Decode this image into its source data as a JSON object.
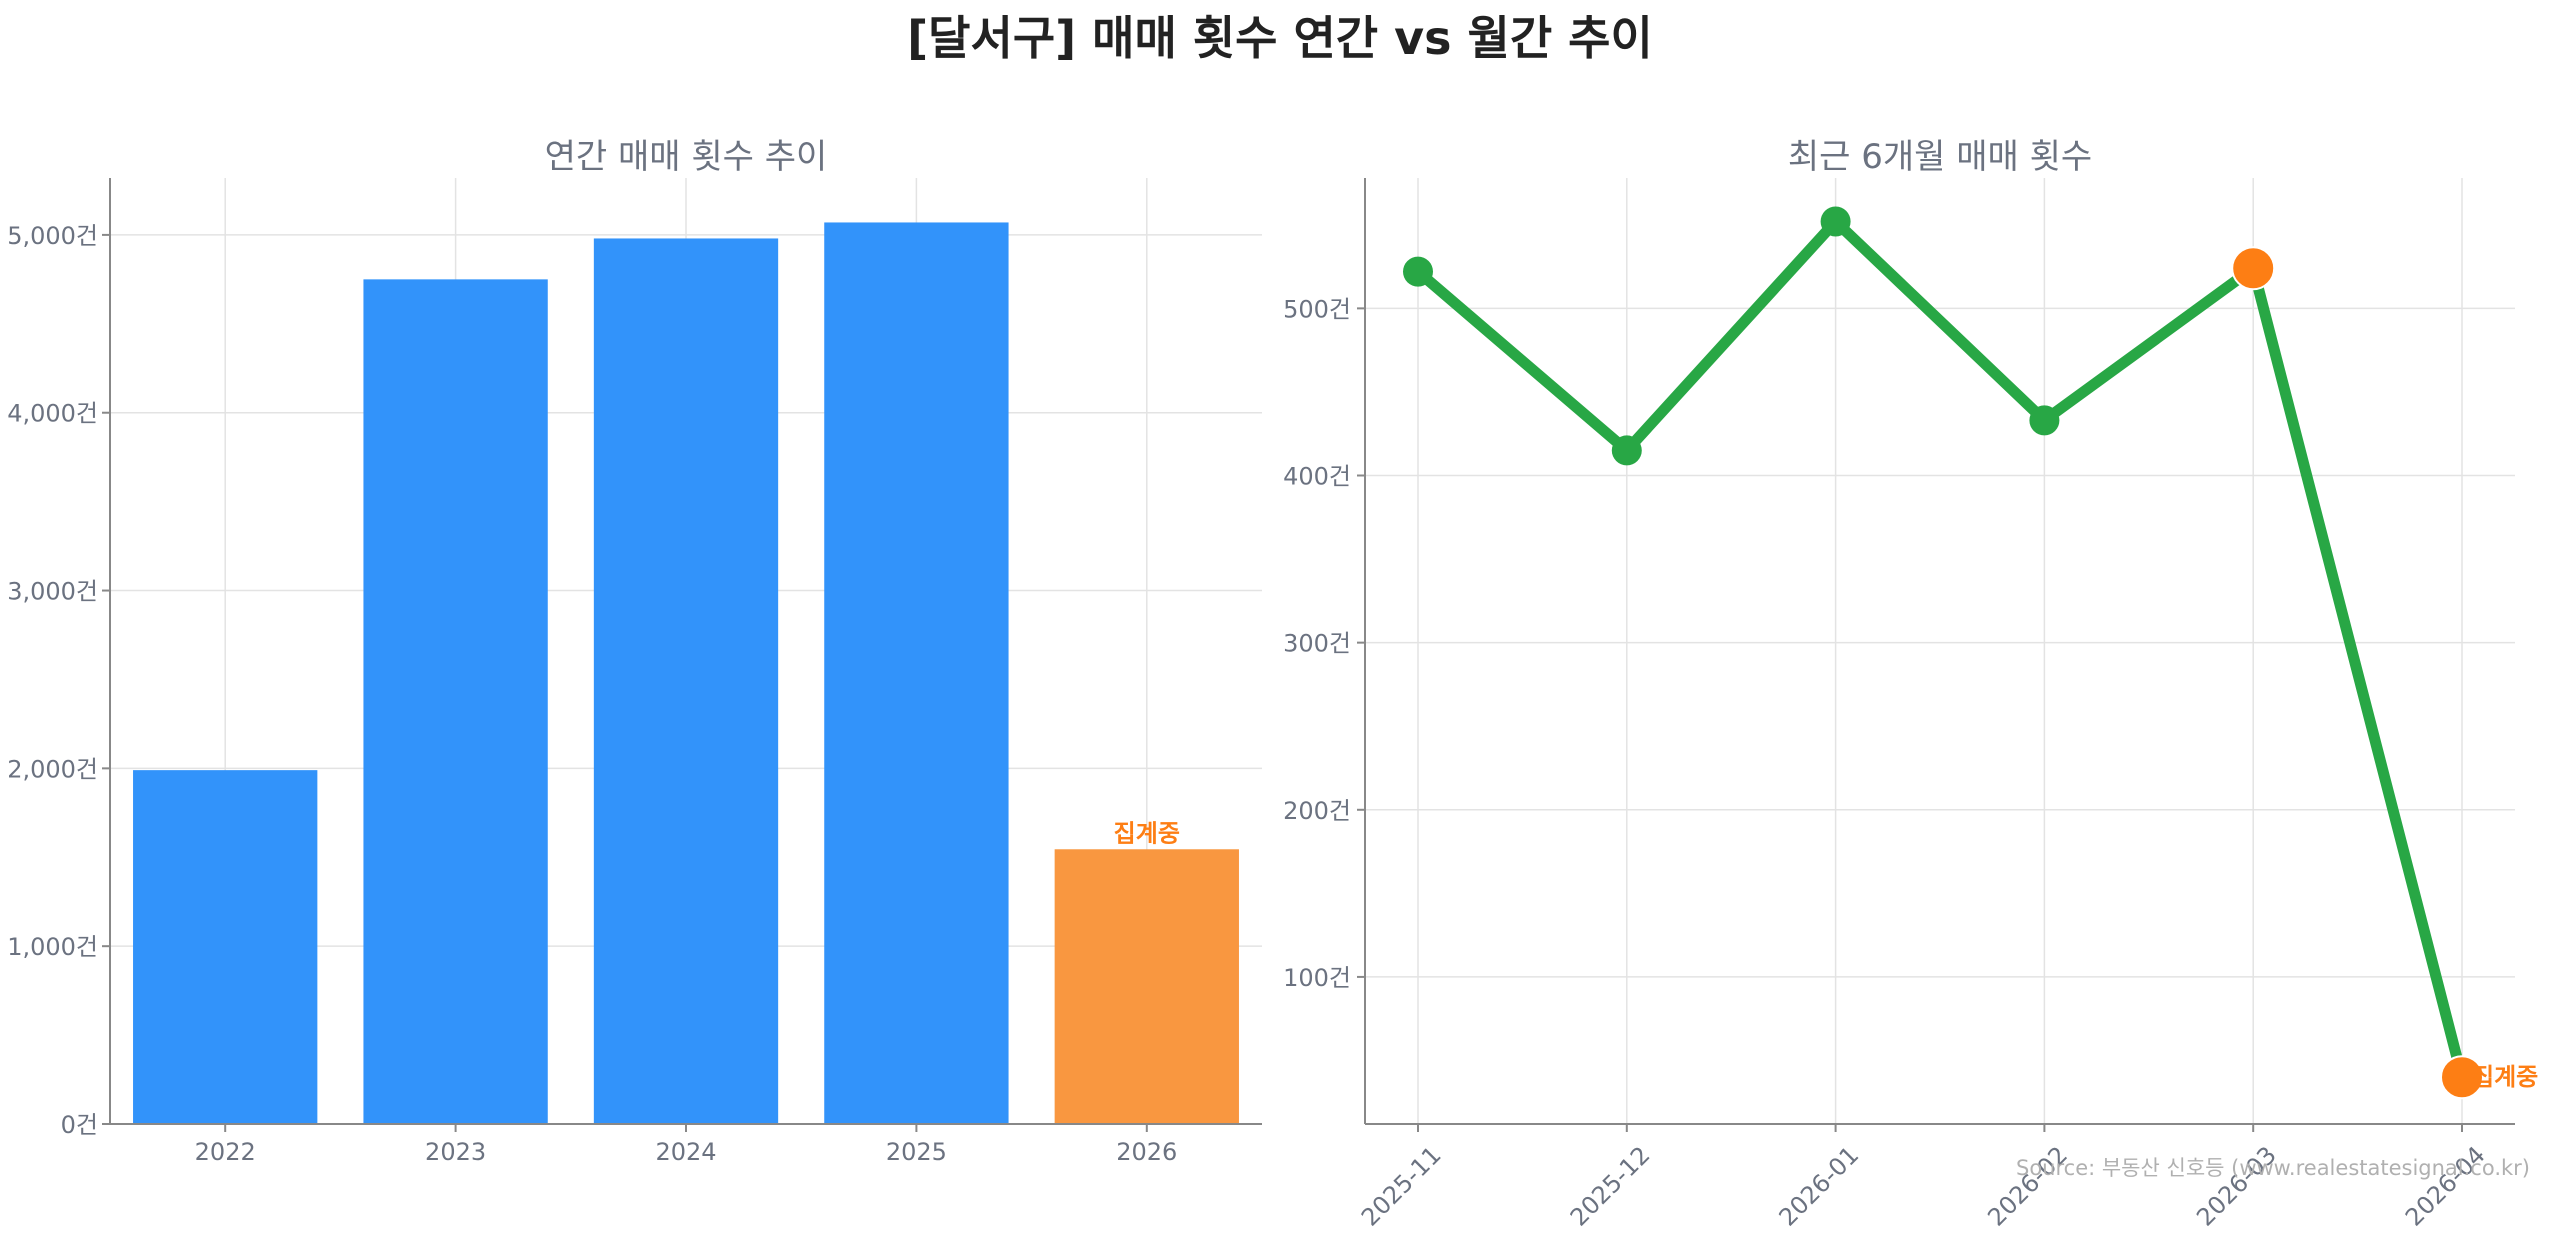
{
  "title": "[달서구] 매매 횟수 연간 vs 월간 추이",
  "source_note": "Source: 부동산 신호등 (www.realestatesignal.co.kr)",
  "colors": {
    "annual_bar": "#3293fa",
    "partial_bar": "#f99740",
    "line": "#28a745",
    "partial_marker": "#fd7e14",
    "annotation": "#fd7e14",
    "panel_bg": "#f4f4f4"
  },
  "chart_data": [
    {
      "type": "bar",
      "title": "연간 매매 횟수 추이",
      "categories": [
        "2022",
        "2023",
        "2024",
        "2025",
        "2026"
      ],
      "values": [
        1990,
        4750,
        4980,
        5070,
        1545
      ],
      "ylim": [
        0,
        5320
      ],
      "yticks": [
        0,
        1000,
        2000,
        3000,
        4000,
        5000
      ],
      "ytick_labels": [
        "0건",
        "1,000건",
        "2,000건",
        "3,000건",
        "4,000건",
        "5,000건"
      ],
      "partial_index": 4,
      "annotation": "집계중",
      "grid": true
    },
    {
      "type": "line",
      "title": "최근 6개월 매매 횟수",
      "x": [
        "2025-11",
        "2025-12",
        "2026-01",
        "2026-02",
        "2026-03",
        "2026-04"
      ],
      "values": [
        522,
        415,
        552,
        433,
        524,
        40
      ],
      "ylim": [
        12,
        578
      ],
      "yticks": [
        100,
        200,
        300,
        400,
        500
      ],
      "ytick_labels": [
        "100건",
        "200건",
        "300건",
        "400건",
        "500건"
      ],
      "highlight_indices": [
        4,
        5
      ],
      "annotation": "집계중",
      "grid": true
    }
  ]
}
